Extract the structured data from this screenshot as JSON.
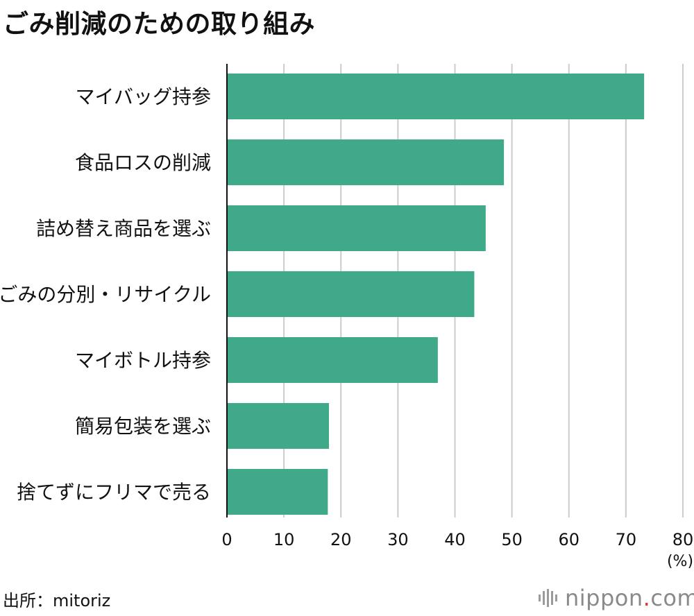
{
  "title": "ごみ削減のための取り組み",
  "source": "出所：mitoriz",
  "logo": {
    "name": "nippon",
    "dot": ".",
    "tld": "com"
  },
  "colors": {
    "bar": "#3fa98a",
    "grid": "#cccccc",
    "axis": "#111111",
    "logo_dot": "#e0342b"
  },
  "chart_data": {
    "type": "bar",
    "orientation": "horizontal",
    "categories": [
      "マイバッグ持参",
      "食品ロスの削減",
      "詰め替え商品を選ぶ",
      "ごみの分別・リサイクル",
      "マイボトル持参",
      "簡易包装を選ぶ",
      "捨てずにフリマで売る"
    ],
    "values": [
      73.2,
      48.6,
      45.4,
      43.4,
      37.0,
      17.9,
      17.7
    ],
    "xlim": [
      0,
      80
    ],
    "xticks": [
      0,
      10,
      20,
      30,
      40,
      50,
      60,
      70,
      80
    ],
    "xunit": "(%)",
    "grid": true
  }
}
